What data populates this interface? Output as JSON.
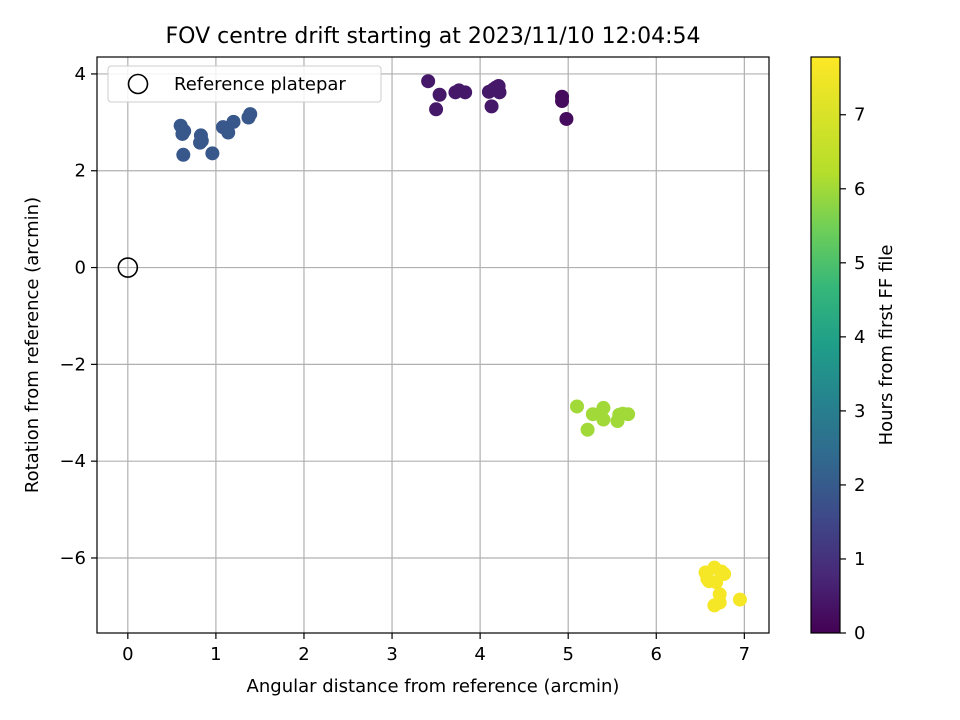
{
  "chart_data": {
    "type": "scatter",
    "title": "FOV centre drift starting at 2023/11/10 12:04:54",
    "xlabel": "Angular distance from reference (arcmin)",
    "ylabel": "Rotation from reference (arcmin)",
    "xlim": [
      -0.35,
      7.28
    ],
    "ylim": [
      -7.55,
      4.35
    ],
    "xticks": [
      0,
      1,
      2,
      3,
      4,
      5,
      6,
      7
    ],
    "xtick_labels": [
      "0",
      "1",
      "2",
      "3",
      "4",
      "5",
      "6",
      "7"
    ],
    "yticks": [
      -6,
      -4,
      -2,
      0,
      2,
      4
    ],
    "ytick_labels": [
      "−6",
      "−4",
      "−2",
      "0",
      "2",
      "4"
    ],
    "grid": true,
    "legend": {
      "position": "top-left",
      "entries": [
        "Reference platepar"
      ]
    },
    "reference": {
      "x": 0,
      "y": 0,
      "marker": "open-circle"
    },
    "colorbar": {
      "label": "Hours from first FF file",
      "range": [
        0,
        7.78
      ],
      "ticks": [
        0,
        1,
        2,
        3,
        4,
        5,
        6,
        7
      ],
      "tick_labels": [
        "0",
        "1",
        "2",
        "3",
        "4",
        "5",
        "6",
        "7"
      ],
      "colormap": "viridis"
    },
    "points": [
      {
        "x": 3.41,
        "y": 3.85,
        "c": 0.45
      },
      {
        "x": 3.54,
        "y": 3.57,
        "c": 0.45
      },
      {
        "x": 3.5,
        "y": 3.27,
        "c": 0.45
      },
      {
        "x": 3.72,
        "y": 3.62,
        "c": 0.45
      },
      {
        "x": 3.76,
        "y": 3.66,
        "c": 0.45
      },
      {
        "x": 3.83,
        "y": 3.62,
        "c": 0.45
      },
      {
        "x": 4.1,
        "y": 3.63,
        "c": 0.45
      },
      {
        "x": 4.15,
        "y": 3.68,
        "c": 0.45
      },
      {
        "x": 4.18,
        "y": 3.72,
        "c": 0.45
      },
      {
        "x": 4.21,
        "y": 3.75,
        "c": 0.45
      },
      {
        "x": 4.22,
        "y": 3.62,
        "c": 0.45
      },
      {
        "x": 4.13,
        "y": 3.33,
        "c": 0.45
      },
      {
        "x": 4.93,
        "y": 3.53,
        "c": 0.2
      },
      {
        "x": 4.93,
        "y": 3.44,
        "c": 0.2
      },
      {
        "x": 4.98,
        "y": 3.07,
        "c": 0.2
      },
      {
        "x": 0.6,
        "y": 2.93,
        "c": 1.9
      },
      {
        "x": 0.64,
        "y": 2.82,
        "c": 1.9
      },
      {
        "x": 0.62,
        "y": 2.76,
        "c": 1.9
      },
      {
        "x": 0.63,
        "y": 2.33,
        "c": 1.9
      },
      {
        "x": 0.83,
        "y": 2.73,
        "c": 1.9
      },
      {
        "x": 0.84,
        "y": 2.62,
        "c": 1.9
      },
      {
        "x": 0.82,
        "y": 2.58,
        "c": 1.9
      },
      {
        "x": 0.96,
        "y": 2.36,
        "c": 1.9
      },
      {
        "x": 1.08,
        "y": 2.9,
        "c": 1.9
      },
      {
        "x": 1.14,
        "y": 2.79,
        "c": 1.9
      },
      {
        "x": 1.2,
        "y": 3.01,
        "c": 1.9
      },
      {
        "x": 1.37,
        "y": 3.1,
        "c": 1.9
      },
      {
        "x": 1.39,
        "y": 3.17,
        "c": 1.9
      },
      {
        "x": 5.1,
        "y": -2.87,
        "c": 6.0
      },
      {
        "x": 5.22,
        "y": -3.35,
        "c": 6.0
      },
      {
        "x": 5.28,
        "y": -3.03,
        "c": 6.0
      },
      {
        "x": 5.4,
        "y": -2.9,
        "c": 6.0
      },
      {
        "x": 5.4,
        "y": -3.14,
        "c": 6.0
      },
      {
        "x": 5.56,
        "y": -3.17,
        "c": 6.0
      },
      {
        "x": 5.58,
        "y": -3.04,
        "c": 6.0
      },
      {
        "x": 5.62,
        "y": -3.02,
        "c": 6.0
      },
      {
        "x": 5.68,
        "y": -3.03,
        "c": 6.0
      },
      {
        "x": 6.56,
        "y": -6.3,
        "c": 7.6
      },
      {
        "x": 6.58,
        "y": -6.43,
        "c": 7.6
      },
      {
        "x": 6.6,
        "y": -6.48,
        "c": 7.6
      },
      {
        "x": 6.66,
        "y": -6.2,
        "c": 7.6
      },
      {
        "x": 6.68,
        "y": -6.5,
        "c": 7.6
      },
      {
        "x": 6.72,
        "y": -6.75,
        "c": 7.6
      },
      {
        "x": 6.74,
        "y": -6.28,
        "c": 7.6
      },
      {
        "x": 6.77,
        "y": -6.33,
        "c": 7.6
      },
      {
        "x": 6.72,
        "y": -6.92,
        "c": 7.6
      },
      {
        "x": 6.66,
        "y": -6.98,
        "c": 7.6
      },
      {
        "x": 6.95,
        "y": -6.86,
        "c": 7.6
      }
    ]
  }
}
